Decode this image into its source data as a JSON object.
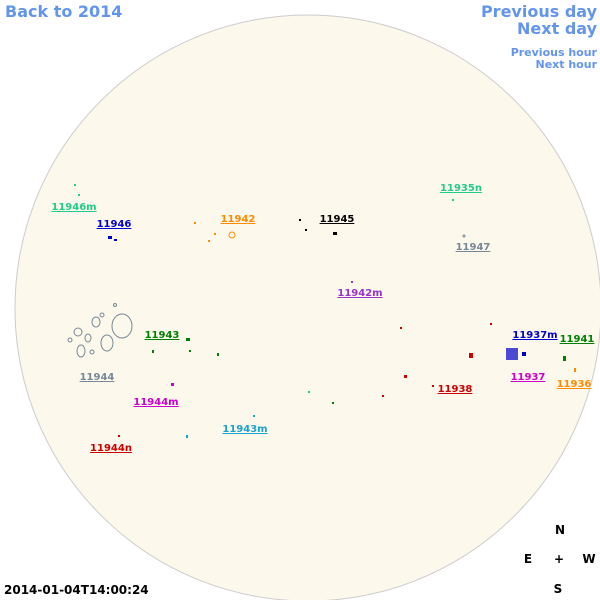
{
  "nav": {
    "back_year": "Back to 2014",
    "previous_day": "Previous day",
    "next_day": "Next day",
    "previous_hour": "Previous hour",
    "next_hour": "Next hour"
  },
  "timestamp": "2014-01-04T14:00:24",
  "compass": {
    "north": "N",
    "east": "E",
    "center": "+",
    "west": "W",
    "south": "S"
  },
  "regions": [
    {
      "label": "11946m",
      "color": "#22cc88"
    },
    {
      "label": "11946",
      "color": "#0000cc"
    },
    {
      "label": "11942",
      "color": "#ff8c00"
    },
    {
      "label": "11945",
      "color": "#000000"
    },
    {
      "label": "11935n",
      "color": "#22cc88"
    },
    {
      "label": "11947",
      "color": "#778899"
    },
    {
      "label": "11942m",
      "color": "#9933cc"
    },
    {
      "label": "11943",
      "color": "#008000"
    },
    {
      "label": "11944",
      "color": "#778899"
    },
    {
      "label": "11944m",
      "color": "#cc00cc"
    },
    {
      "label": "11943m",
      "color": "#1aa3cc"
    },
    {
      "label": "11944n",
      "color": "#cc0000"
    },
    {
      "label": "11937m",
      "color": "#0000cc"
    },
    {
      "label": "11941",
      "color": "#008000"
    },
    {
      "label": "11937",
      "color": "#cc00cc"
    },
    {
      "label": "11938",
      "color": "#cc0000"
    },
    {
      "label": "11936",
      "color": "#ff8c00"
    }
  ]
}
